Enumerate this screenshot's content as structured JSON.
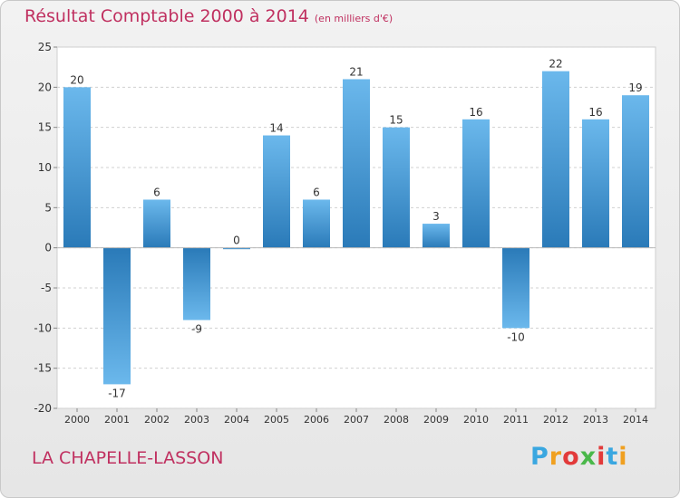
{
  "header": {
    "title": "Résultat Comptable 2000 à 2014",
    "subtitle": "(en milliers d'€)"
  },
  "footer": {
    "town": "LA CHAPELLE-LASSON",
    "logo_letters": [
      "P",
      "r",
      "o",
      "x",
      "i",
      "t",
      "i"
    ],
    "logo_colors": [
      "#3aa7e0",
      "#f0a020",
      "#e23a3a",
      "#4ab84a",
      "#e23a3a",
      "#3aa7e0",
      "#f0a020"
    ]
  },
  "colors": {
    "bar_light": "#6bb8ec",
    "bar_dark": "#2a7ab8"
  },
  "chart_data": {
    "type": "bar",
    "title": "Résultat Comptable 2000 à 2014",
    "subtitle": "(en milliers d'€)",
    "xlabel": "",
    "ylabel": "",
    "categories": [
      "2000",
      "2001",
      "2002",
      "2003",
      "2004",
      "2005",
      "2006",
      "2007",
      "2008",
      "2009",
      "2010",
      "2011",
      "2012",
      "2013",
      "2014"
    ],
    "values": [
      20,
      -17,
      6,
      -9,
      0,
      14,
      6,
      21,
      15,
      3,
      16,
      -10,
      22,
      16,
      19
    ],
    "ylim": [
      -20,
      25
    ],
    "yticks": [
      25,
      20,
      15,
      10,
      5,
      0,
      -5,
      -10,
      -15,
      -20
    ],
    "grid": true
  }
}
